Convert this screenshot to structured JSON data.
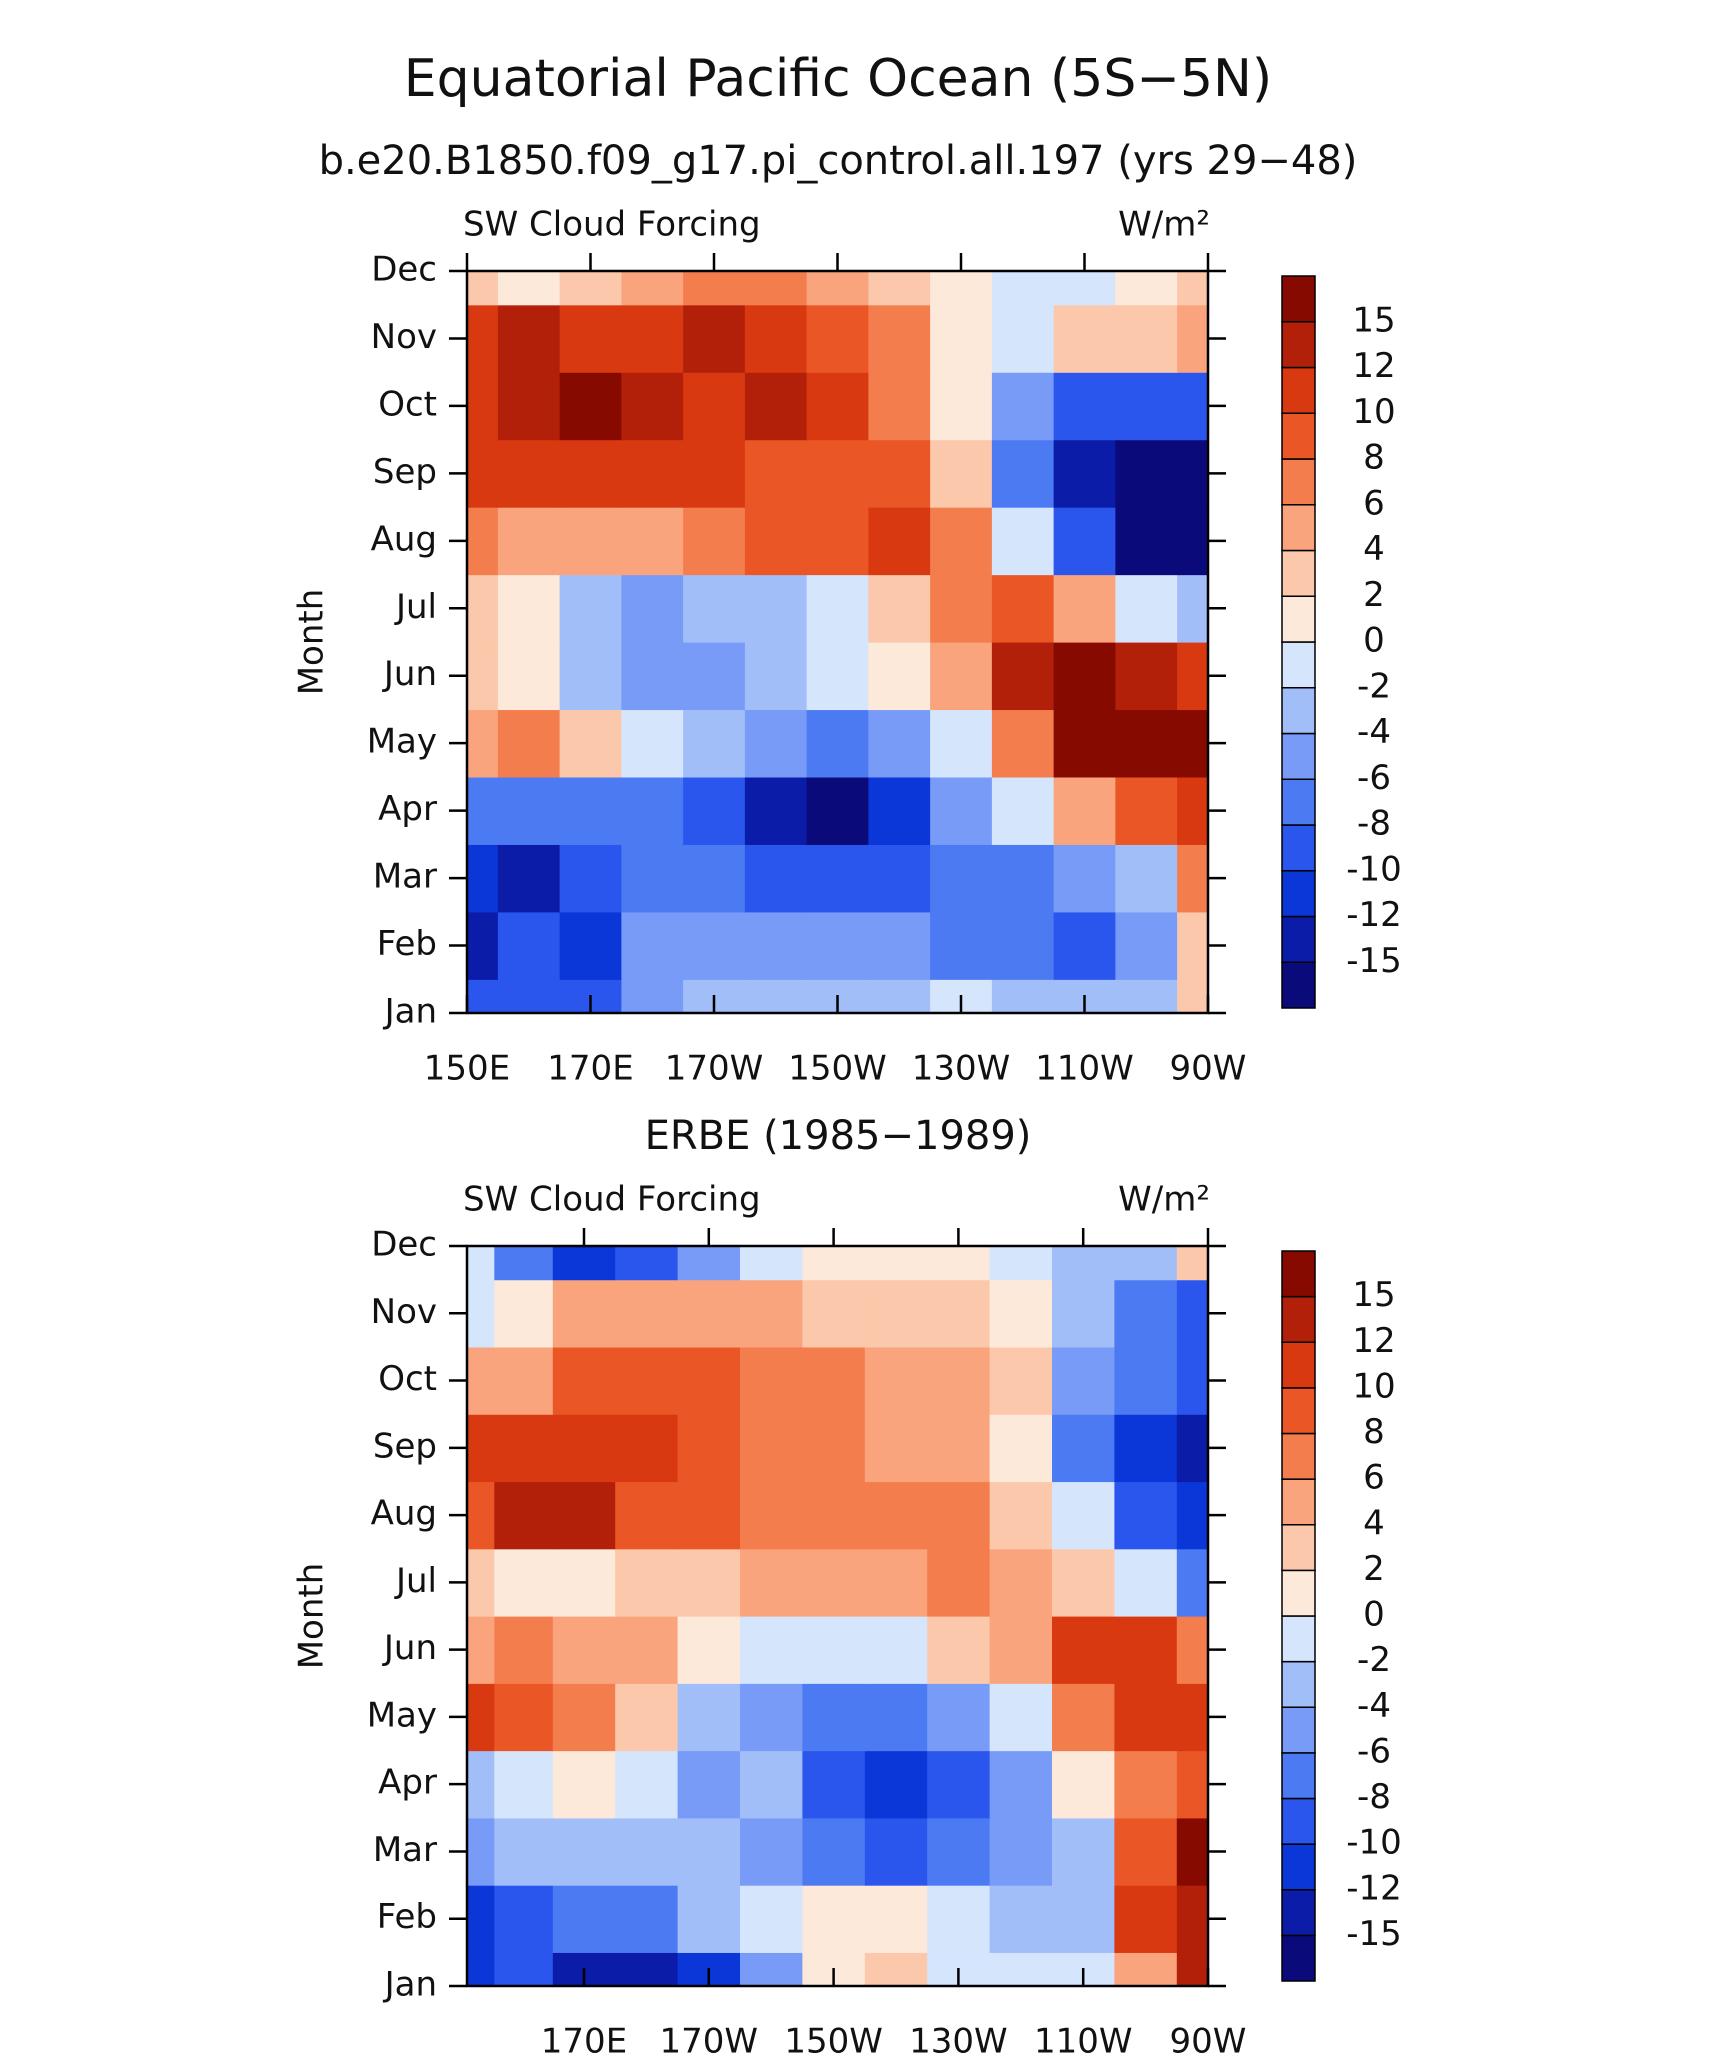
{
  "title": "Equatorial Pacific Ocean (5S−5N)",
  "chart_data": [
    {
      "type": "contour",
      "title": "b.e20.B1850.f09_g17.pi_control.all.197 (yrs 29−48)",
      "left_label": "SW Cloud Forcing",
      "right_label": "W/m²",
      "ylabel": "Month",
      "categories": [
        "Jan",
        "Feb",
        "Mar",
        "Apr",
        "May",
        "Jun",
        "Jul",
        "Aug",
        "Sep",
        "Oct",
        "Nov",
        "Dec"
      ],
      "x": [
        150,
        160,
        170,
        180,
        190,
        200,
        210,
        220,
        230,
        240,
        250,
        260,
        270
      ],
      "xlim": [
        150,
        270
      ],
      "xticks": [
        {
          "value": 150,
          "label": "150E"
        },
        {
          "value": 170,
          "label": "170E"
        },
        {
          "value": 190,
          "label": "170W"
        },
        {
          "value": 210,
          "label": "150W"
        },
        {
          "value": 230,
          "label": "130W"
        },
        {
          "value": 250,
          "label": "110W"
        },
        {
          "value": 270,
          "label": "90W"
        }
      ],
      "z": [
        [
          -10,
          -9,
          -9,
          -5,
          -4,
          -3,
          -4,
          -3,
          -2,
          -3,
          -4,
          -3,
          3
        ],
        [
          -13,
          -10,
          -11,
          -6,
          -5,
          -5,
          -5,
          -6,
          -7,
          -7,
          -9,
          -5,
          2
        ],
        [
          -12,
          -13,
          -10,
          -8,
          -8,
          -10,
          -10,
          -9,
          -8,
          -8,
          -6,
          -3,
          6
        ],
        [
          -7,
          -8,
          -8,
          -7,
          -10,
          -13,
          -16,
          -12,
          -6,
          -1,
          5,
          9,
          11
        ],
        [
          5,
          6,
          2,
          -1,
          -4,
          -6,
          -7,
          -5,
          -2,
          6,
          16,
          17,
          16
        ],
        [
          3,
          1,
          -3,
          -5,
          -6,
          -4,
          -2,
          1,
          5,
          12,
          17,
          14,
          10
        ],
        [
          2,
          0,
          -4,
          -5,
          -4,
          -3,
          -1,
          3,
          6,
          8,
          4,
          -1,
          -4
        ],
        [
          7,
          4,
          5,
          5,
          7,
          8,
          8,
          10,
          6,
          -2,
          -9,
          -16,
          -16
        ],
        [
          10,
          11,
          11,
          10,
          10,
          9,
          9,
          8,
          3,
          -7,
          -14,
          -17,
          -17
        ],
        [
          10,
          13,
          16,
          12,
          11,
          13,
          10,
          7,
          1,
          -6,
          -10,
          -10,
          -9
        ],
        [
          11,
          12,
          11,
          11,
          12,
          10,
          9,
          6,
          1,
          -1,
          2,
          2,
          5
        ],
        [
          3,
          1,
          3,
          4,
          6,
          6,
          4,
          2,
          0,
          -1,
          -1,
          0,
          3
        ]
      ],
      "levels": [
        -15,
        -12,
        -10,
        -8,
        -6,
        -4,
        -2,
        0,
        2,
        4,
        6,
        8,
        10,
        12,
        15
      ],
      "colors": [
        "#0a0a7a",
        "#0a1ca8",
        "#0b36d8",
        "#2b56ee",
        "#4c7af3",
        "#779bf6",
        "#a2bef9",
        "#d5e5fc",
        "#fde9da",
        "#fcc8ab",
        "#f9a47c",
        "#f47d4d",
        "#ea5626",
        "#d93910",
        "#b3200a",
        "#870a00"
      ]
    },
    {
      "type": "contour",
      "title": "ERBE (1985−1989)",
      "left_label": "SW Cloud Forcing",
      "right_label": "W/m²",
      "ylabel": "Month",
      "categories": [
        "Jan",
        "Feb",
        "Mar",
        "Apr",
        "May",
        "Jun",
        "Jul",
        "Aug",
        "Sep",
        "Oct",
        "Nov",
        "Dec"
      ],
      "x": [
        151.25,
        160,
        170,
        180,
        190,
        200,
        210,
        220,
        230,
        240,
        250,
        260,
        270
      ],
      "xlim": [
        151.25,
        270
      ],
      "xticks": [
        {
          "value": 170,
          "label": "170E"
        },
        {
          "value": 190,
          "label": "170W"
        },
        {
          "value": 210,
          "label": "150W"
        },
        {
          "value": 230,
          "label": "130W"
        },
        {
          "value": 250,
          "label": "110W"
        },
        {
          "value": 270,
          "label": "90W"
        }
      ],
      "z": [
        [
          -12,
          -10,
          -13,
          -14,
          -11,
          -6,
          1,
          2,
          -1,
          -1,
          -2,
          4,
          12
        ],
        [
          -11,
          -10,
          -8,
          -7,
          -3,
          -2,
          1,
          1,
          -1,
          -3,
          -3,
          10,
          14
        ],
        [
          -5,
          -4,
          -3,
          -3,
          -4,
          -6,
          -8,
          -9,
          -8,
          -6,
          -3,
          9,
          16
        ],
        [
          -3,
          -1,
          1,
          -1,
          -6,
          -3,
          -10,
          -12,
          -10,
          -6,
          1,
          7,
          8
        ],
        [
          10,
          9,
          7,
          3,
          -3,
          -5,
          -7,
          -7,
          -5,
          -1,
          6,
          10,
          10
        ],
        [
          5,
          7,
          5,
          4,
          1,
          -1,
          -2,
          -1,
          2,
          5,
          10,
          11,
          7
        ],
        [
          3,
          1,
          0,
          2,
          3,
          4,
          5,
          5,
          6,
          5,
          2,
          -2,
          -8
        ],
        [
          9,
          12,
          12,
          9,
          8,
          7,
          6,
          6,
          6,
          3,
          -2,
          -9,
          -11
        ],
        [
          10,
          11,
          10,
          11,
          9,
          7,
          6,
          5,
          4,
          0,
          -8,
          -12,
          -13
        ],
        [
          5,
          5,
          8,
          9,
          8,
          6,
          6,
          5,
          4,
          2,
          -5,
          -8,
          -10
        ],
        [
          -1,
          0,
          4,
          5,
          5,
          4,
          3,
          3,
          3,
          1,
          -4,
          -7,
          -9
        ],
        [
          -2,
          -8,
          -12,
          -10,
          -5,
          -1,
          1,
          0,
          0,
          -1,
          -3,
          -3,
          3
        ]
      ],
      "levels": [
        -15,
        -12,
        -10,
        -8,
        -6,
        -4,
        -2,
        0,
        2,
        4,
        6,
        8,
        10,
        12,
        15
      ],
      "colors": [
        "#0a0a7a",
        "#0a1ca8",
        "#0b36d8",
        "#2b56ee",
        "#4c7af3",
        "#779bf6",
        "#a2bef9",
        "#d5e5fc",
        "#fde9da",
        "#fcc8ab",
        "#f9a47c",
        "#f47d4d",
        "#ea5626",
        "#d93910",
        "#b3200a",
        "#870a00"
      ]
    }
  ]
}
